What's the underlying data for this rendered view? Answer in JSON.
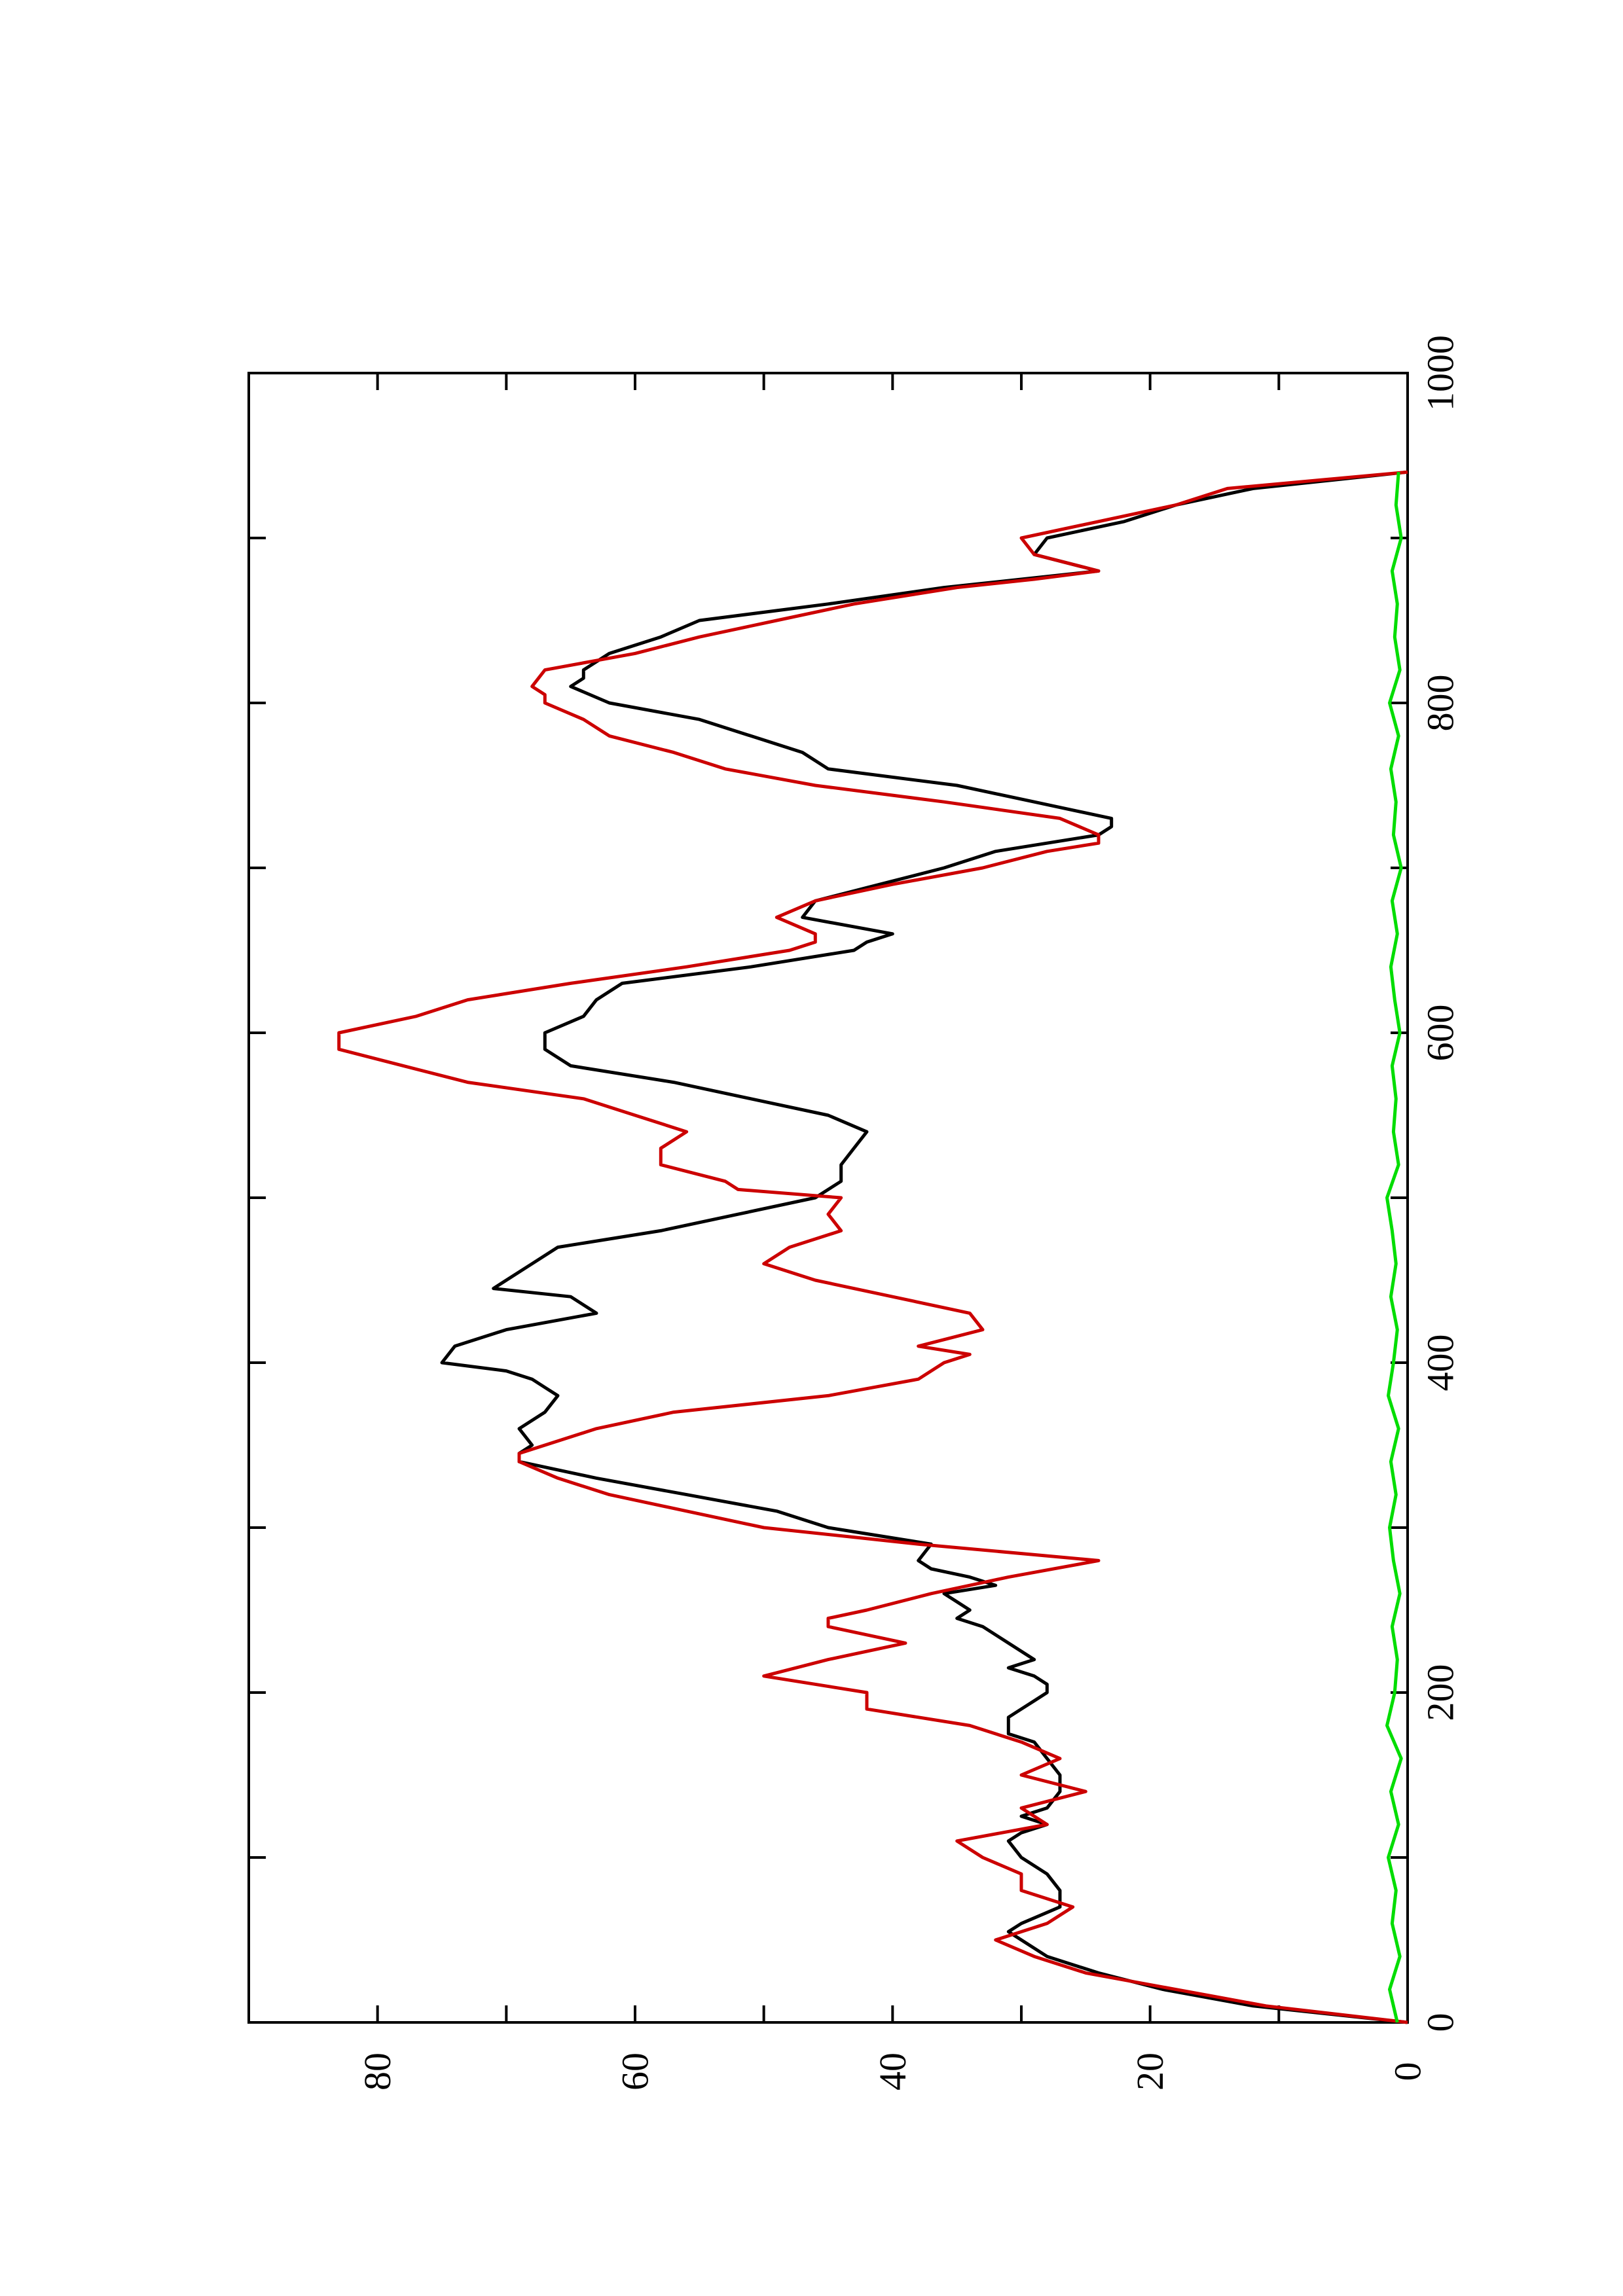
{
  "chart_data": {
    "type": "line",
    "orientation": "rotated-90-ccw",
    "title": "",
    "xlabel": "",
    "ylabel": "",
    "xlim": [
      0,
      1000
    ],
    "ylim": [
      0,
      90
    ],
    "x_ticks": [
      0,
      200,
      400,
      600,
      800,
      1000
    ],
    "x_tick_labels": [
      "0",
      "200",
      "400",
      "600",
      "800",
      "1000"
    ],
    "y_ticks": [
      0,
      20,
      40,
      60,
      80
    ],
    "y_tick_labels": [
      "0",
      "20",
      "40",
      "60",
      "80"
    ],
    "grid": false,
    "legend": "none",
    "series": [
      {
        "color": "#000000",
        "x": [
          0,
          10,
          20,
          30,
          40,
          50,
          55,
          60,
          70,
          80,
          90,
          100,
          110,
          115,
          120,
          125,
          130,
          140,
          150,
          160,
          170,
          175,
          185,
          190,
          195,
          200,
          205,
          210,
          215,
          220,
          230,
          240,
          245,
          250,
          255,
          260,
          265,
          270,
          275,
          280,
          290,
          300,
          310,
          320,
          330,
          340,
          345,
          350,
          360,
          370,
          380,
          385,
          390,
          395,
          400,
          410,
          420,
          430,
          440,
          445,
          450,
          460,
          470,
          480,
          490,
          500,
          510,
          520,
          530,
          540,
          550,
          560,
          570,
          580,
          590,
          600,
          610,
          620,
          630,
          640,
          650,
          655,
          660,
          670,
          680,
          690,
          700,
          710,
          720,
          725,
          730,
          740,
          750,
          760,
          770,
          780,
          790,
          800,
          810,
          815,
          820,
          830,
          840,
          850,
          860,
          870,
          875,
          880,
          890,
          900,
          910,
          920,
          930,
          940
        ],
        "y": [
          0,
          12,
          19,
          24,
          28,
          30,
          31,
          30,
          27,
          27,
          28,
          30,
          31,
          30,
          28,
          30,
          28,
          27,
          27,
          28,
          29,
          31,
          31,
          30,
          29,
          28,
          28,
          29,
          31,
          29,
          31,
          33,
          35,
          34,
          35,
          36,
          32,
          34,
          37,
          38,
          37,
          45,
          49,
          56,
          63,
          69,
          69,
          68,
          69,
          67,
          66,
          67,
          68,
          70,
          75,
          74,
          70,
          63,
          65,
          71,
          70,
          68,
          66,
          58,
          52,
          46,
          44,
          44,
          43,
          42,
          45,
          51,
          57,
          65,
          67,
          67,
          64,
          63,
          61,
          51,
          43,
          42,
          40,
          47,
          46,
          41,
          36,
          32,
          24,
          23,
          23,
          29,
          35,
          45,
          47,
          51,
          55,
          62,
          65,
          64,
          64,
          62,
          58,
          55,
          45,
          36,
          30,
          24,
          29,
          28,
          22,
          18,
          12,
          0
        ]
      },
      {
        "color": "#cc0000",
        "x": [
          0,
          10,
          20,
          30,
          40,
          50,
          60,
          70,
          80,
          90,
          100,
          110,
          120,
          130,
          140,
          150,
          160,
          170,
          180,
          190,
          200,
          210,
          220,
          230,
          240,
          245,
          250,
          260,
          270,
          280,
          290,
          300,
          310,
          320,
          330,
          340,
          345,
          360,
          370,
          380,
          390,
          400,
          405,
          410,
          420,
          430,
          440,
          450,
          460,
          470,
          480,
          490,
          500,
          505,
          510,
          520,
          530,
          540,
          550,
          560,
          570,
          580,
          590,
          600,
          610,
          620,
          630,
          640,
          650,
          655,
          660,
          670,
          680,
          690,
          700,
          710,
          715,
          720,
          730,
          740,
          750,
          760,
          770,
          780,
          790,
          800,
          805,
          810,
          820,
          830,
          840,
          850,
          860,
          870,
          875,
          880,
          890,
          900,
          910,
          920,
          930,
          940
        ],
        "y": [
          0,
          11,
          18,
          25,
          29,
          32,
          28,
          26,
          30,
          30,
          33,
          35,
          28,
          30,
          25,
          30,
          27,
          30,
          34,
          42,
          42,
          50,
          45,
          39,
          45,
          45,
          42,
          37,
          31,
          24,
          38,
          50,
          56,
          62,
          66,
          69,
          69,
          63,
          57,
          45,
          38,
          36,
          34,
          38,
          33,
          34,
          40,
          46,
          50,
          48,
          44,
          45,
          44,
          52,
          53,
          58,
          58,
          56,
          60,
          64,
          73,
          78,
          83,
          83,
          77,
          73,
          65,
          56,
          48,
          46,
          46,
          49,
          46,
          40,
          33,
          28,
          24,
          24,
          27,
          36,
          46,
          53,
          57,
          62,
          64,
          67,
          67,
          68,
          67,
          60,
          55,
          49,
          43,
          35,
          29,
          24,
          29,
          30,
          24,
          18,
          14,
          0
        ]
      },
      {
        "color": "#00dd00",
        "x": [
          0,
          20,
          40,
          60,
          80,
          100,
          120,
          140,
          160,
          180,
          200,
          220,
          240,
          260,
          280,
          300,
          320,
          340,
          360,
          380,
          400,
          420,
          440,
          460,
          480,
          500,
          520,
          540,
          560,
          580,
          600,
          620,
          640,
          660,
          680,
          700,
          720,
          740,
          760,
          780,
          800,
          820,
          840,
          860,
          880,
          900,
          920,
          940
        ],
        "y": [
          0.8,
          1.4,
          0.6,
          1.2,
          0.9,
          1.5,
          0.7,
          1.3,
          0.5,
          1.6,
          1.0,
          0.8,
          1.2,
          0.6,
          1.1,
          1.4,
          0.9,
          1.3,
          0.7,
          1.5,
          1.1,
          0.8,
          1.3,
          0.9,
          1.2,
          1.6,
          0.7,
          1.1,
          0.9,
          1.2,
          0.6,
          1.0,
          1.3,
          0.8,
          1.2,
          0.5,
          1.1,
          0.9,
          1.3,
          0.7,
          1.4,
          0.6,
          1.0,
          0.8,
          1.2,
          0.5,
          0.9,
          0.7
        ]
      }
    ]
  }
}
